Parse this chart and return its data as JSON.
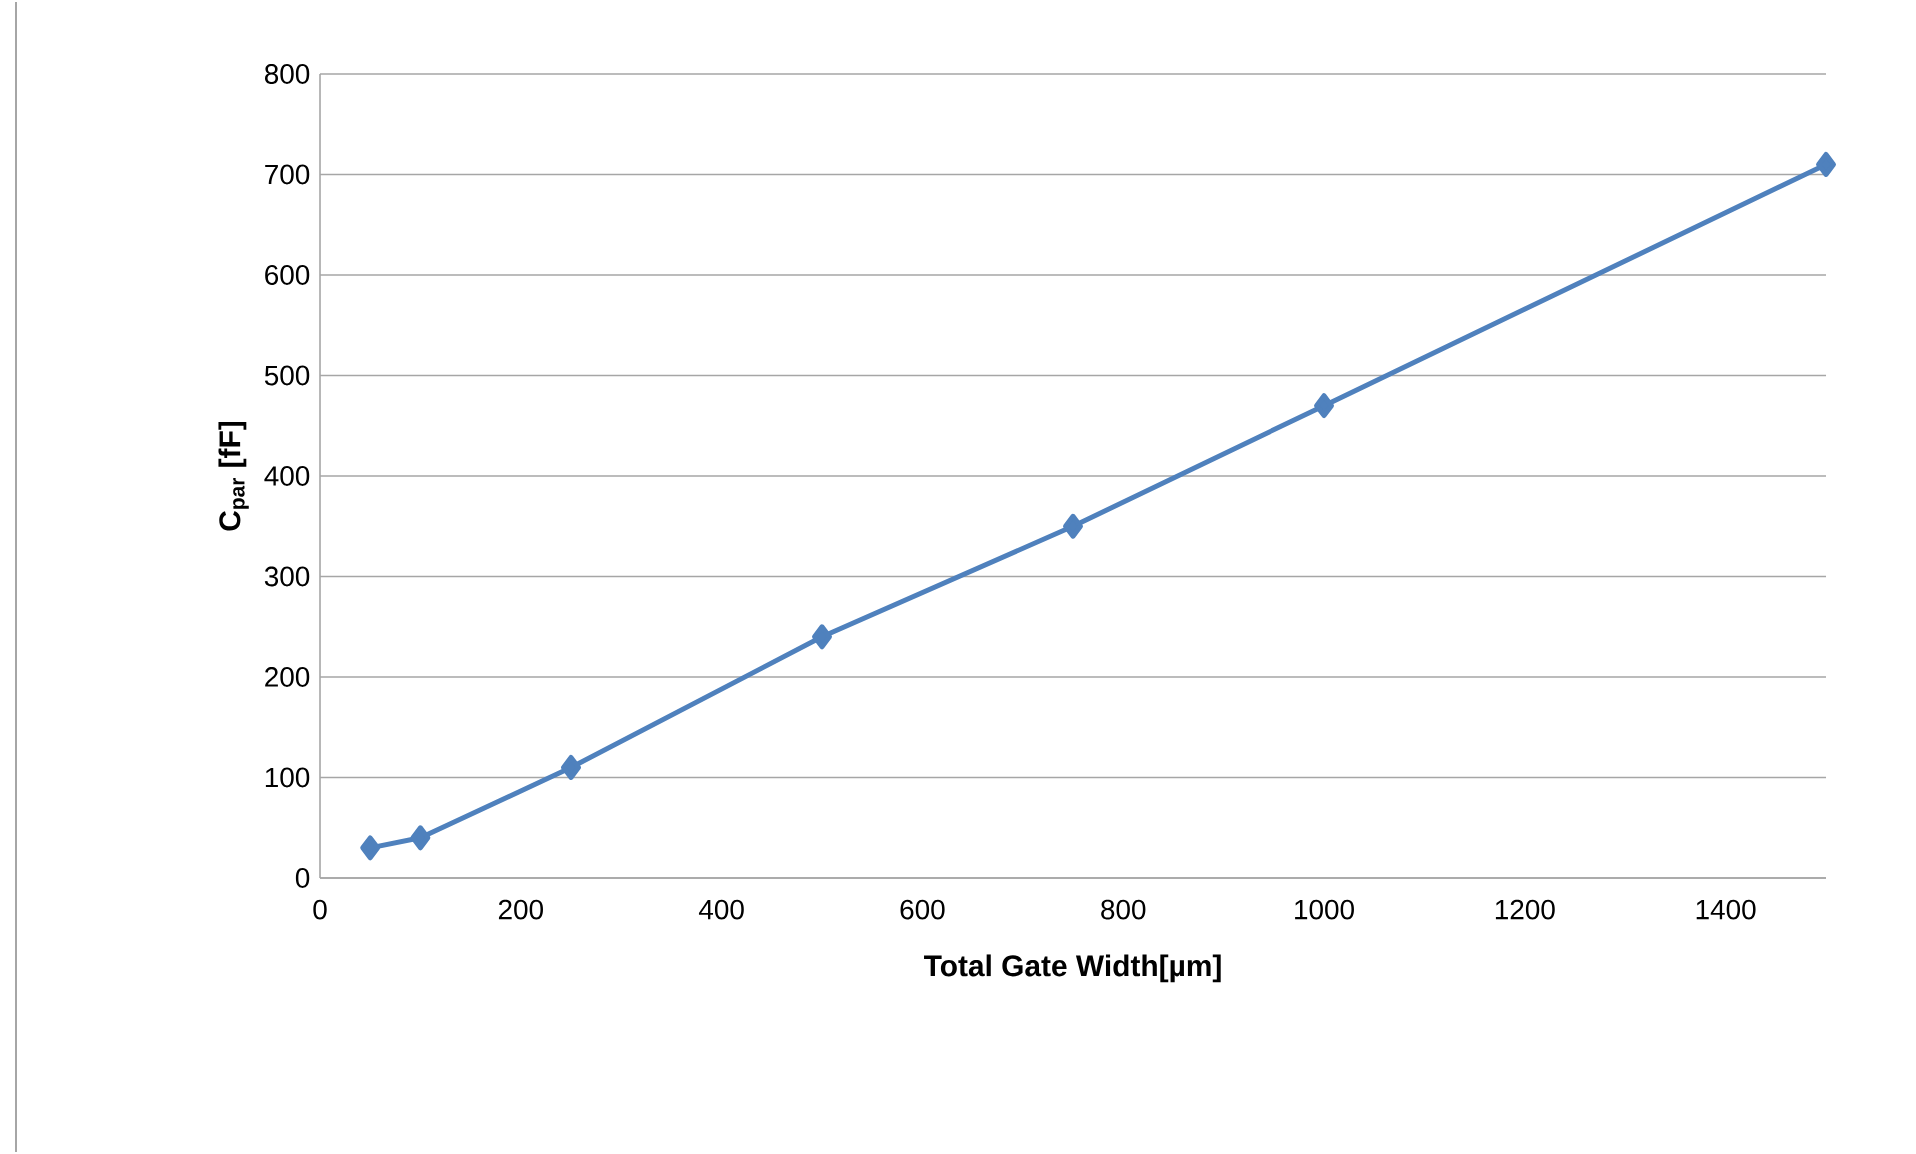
{
  "chart_data": {
    "type": "line",
    "xlabel": "Total Gate Width[µm]",
    "ylabel": "C$_{par}$ [fF]",
    "x": [
      50,
      100,
      250,
      500,
      750,
      1000,
      1500
    ],
    "series": [
      {
        "color": "#4f81bd",
        "values": [
          30,
          40,
          110,
          240,
          350,
          470,
          710
        ]
      }
    ],
    "xlim": [
      0,
      1500
    ],
    "ylim": [
      0,
      800
    ],
    "xticks": [
      0,
      200,
      400,
      600,
      800,
      1000,
      1200,
      1400
    ],
    "yticks": [
      0,
      100,
      200,
      300,
      400,
      500,
      600,
      700,
      800
    ],
    "grid": "y",
    "marker": "diamond",
    "line_style": "solid"
  }
}
